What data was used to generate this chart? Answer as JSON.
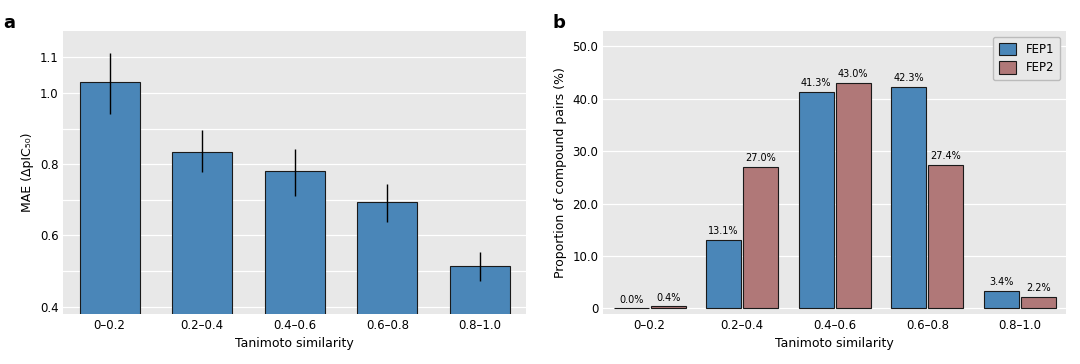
{
  "panel_a": {
    "categories": [
      "0–0.2",
      "0.2–0.4",
      "0.4–0.6",
      "0.6–0.8",
      "0.8–1.0"
    ],
    "values": [
      1.03,
      0.835,
      0.78,
      0.695,
      0.515
    ],
    "errors_upper": [
      0.082,
      0.06,
      0.062,
      0.048,
      0.038
    ],
    "errors_lower": [
      0.088,
      0.058,
      0.068,
      0.058,
      0.043
    ],
    "bar_color": "#4a86b8",
    "bar_edgecolor": "#1a1a1a",
    "ylabel": "MAE (ΔpIC₅₀)",
    "xlabel": "Tanimoto similarity",
    "ylim": [
      0.38,
      1.175
    ],
    "yticks": [
      0.4,
      0.5,
      0.6,
      0.7,
      0.8,
      0.9,
      1.0,
      1.1
    ],
    "ytick_labels": [
      "0.4",
      "",
      "0.6",
      "",
      "0.8",
      "",
      "1.0",
      "1.1"
    ],
    "background_color": "#e8e8e8",
    "panel_label": "a"
  },
  "panel_b": {
    "categories": [
      "0–0.2",
      "0.2–0.4",
      "0.4–0.6",
      "0.6–0.8",
      "0.8–1.0"
    ],
    "fep1_values": [
      0.0,
      13.1,
      41.3,
      42.3,
      3.4
    ],
    "fep2_values": [
      0.4,
      27.0,
      43.0,
      27.4,
      2.2
    ],
    "fep1_color": "#4a86b8",
    "fep2_color": "#b07878",
    "bar_edgecolor": "#1a1a1a",
    "ylabel": "Proportion of compound pairs (%)",
    "xlabel": "Tanimoto similarity",
    "ylim": [
      -1,
      53
    ],
    "yticks": [
      0.0,
      10.0,
      20.0,
      30.0,
      40.0,
      50.0
    ],
    "ytick_labels": [
      "0",
      "10.0",
      "20.0",
      "30.0",
      "40.0",
      "50.0"
    ],
    "background_color": "#e8e8e8",
    "panel_label": "b",
    "legend_labels": [
      "FEP1",
      "FEP2"
    ]
  }
}
